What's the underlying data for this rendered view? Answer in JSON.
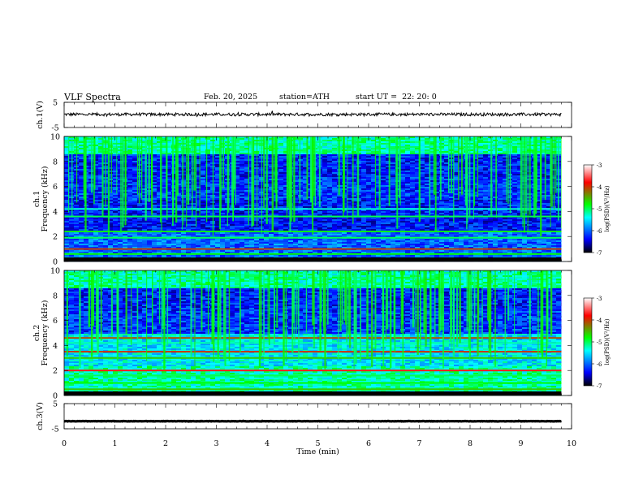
{
  "header": {
    "title": "VLF Spectra",
    "date": "Feb. 20, 2025",
    "station": "station=ATH",
    "start": "start UT =  22: 20: 0"
  },
  "chart_data": [
    {
      "type": "line",
      "name": "ch1-waveform",
      "ylabel": "ch.1(V)",
      "ylim": [
        -5,
        5
      ],
      "yticks": [
        "5",
        "-5"
      ],
      "xlim": [
        0,
        10
      ],
      "x_end": 9.8,
      "baseline": 0.2,
      "noise_amplitude": 1.2
    },
    {
      "type": "heatmap",
      "name": "ch1-spectrogram",
      "ylabel_top": "ch.1",
      "ylabel": "Frequency  (kHz)",
      "ylim": [
        0,
        10
      ],
      "yticks": [
        "10",
        "8",
        "6",
        "4",
        "2",
        "0"
      ],
      "xlim": [
        0,
        10
      ],
      "x_end": 9.8,
      "colorbar": {
        "label": "log(PSD)(V²/Hz)",
        "range": [
          -7,
          -3
        ],
        "ticks": [
          "-3",
          "-4",
          "-5",
          "-6",
          "-7"
        ]
      }
    },
    {
      "type": "heatmap",
      "name": "ch2-spectrogram",
      "ylabel_top": "ch.2",
      "ylabel": "Frequency  (kHz)",
      "ylim": [
        0,
        10
      ],
      "yticks": [
        "10",
        "8",
        "6",
        "4",
        "2",
        "0"
      ],
      "xlim": [
        0,
        10
      ],
      "x_end": 9.8,
      "colorbar": {
        "label": "log(PSD)(V²/Hz)",
        "range": [
          -7,
          -3
        ],
        "ticks": [
          "-3",
          "-4",
          "-5",
          "-6",
          "-7"
        ]
      }
    },
    {
      "type": "line",
      "name": "ch3-waveform",
      "ylabel": "ch.3(V)",
      "ylim": [
        -5,
        5
      ],
      "yticks": [
        "5",
        "-5"
      ],
      "xlim": [
        0,
        10
      ],
      "x_end": 9.8,
      "baseline": -2.0,
      "noise_amplitude": 0.15
    }
  ],
  "xaxis": {
    "label": "Time  (min)",
    "ticks": [
      "0",
      "1",
      "2",
      "3",
      "4",
      "5",
      "6",
      "7",
      "8",
      "9",
      "10"
    ]
  },
  "colors": {
    "colormap": [
      "#000000",
      "#0000ff",
      "#00ffff",
      "#00ff00",
      "#ff0000",
      "#ffffff"
    ]
  }
}
